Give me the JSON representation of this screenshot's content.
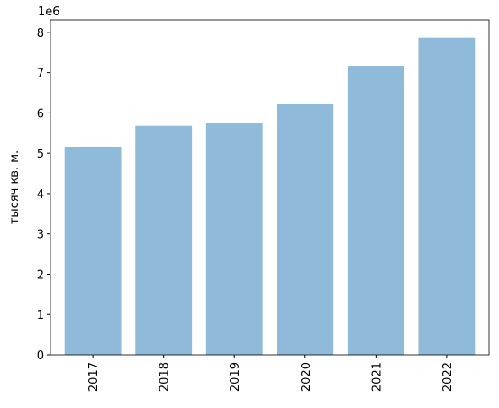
{
  "chart_data": {
    "type": "bar",
    "y_label": "тысяч кв. м.",
    "y_offset_label": "1e6",
    "categories": [
      "2017",
      "2018",
      "2019",
      "2020",
      "2021",
      "2022"
    ],
    "values": [
      5.16,
      5.68,
      5.74,
      6.23,
      7.17,
      7.87
    ],
    "color": "#8fbad9",
    "ylim": [
      0,
      8.31
    ],
    "yticks": [
      0,
      1,
      2,
      3,
      4,
      5,
      6,
      7,
      8
    ],
    "grid": false
  }
}
